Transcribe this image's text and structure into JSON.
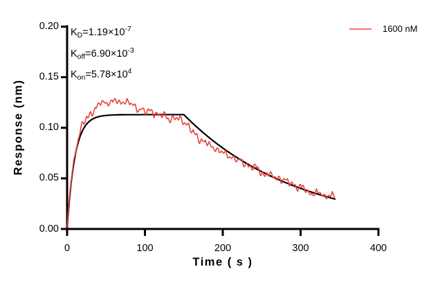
{
  "chart_data": {
    "type": "line",
    "title": "",
    "xlabel": "Time ( s )",
    "ylabel": "Response (nm)",
    "xlim": [
      0,
      400
    ],
    "ylim": [
      0,
      0.2
    ],
    "xticks": [
      "0",
      "100",
      "200",
      "300",
      "400"
    ],
    "yticks": [
      "0.00",
      "0.05",
      "0.10",
      "0.15",
      "0.20"
    ],
    "grid": false,
    "background_color": "#ffffff",
    "axis_color": "#000000",
    "legend": {
      "position": "top-right",
      "entries": [
        {
          "label": "1600 nM",
          "color": "#E8433A"
        }
      ]
    },
    "annotations": [
      {
        "base": "K",
        "sub": "D",
        "mid": "=1.19×10",
        "sup": "-7"
      },
      {
        "base": "K",
        "sub": "off",
        "mid": "=6.90×10",
        "sup": "-3"
      },
      {
        "base": "K",
        "sub": "on",
        "mid": "=5.78×10",
        "sup": "4"
      }
    ],
    "kinetics": {
      "KD_M": 1.19e-07,
      "koff_per_s": 0.0069,
      "kon_per_M_s": 57800.0,
      "concentration_nM": 1600
    },
    "series": [
      {
        "name": "1600 nM measured",
        "color": "#E8433A",
        "style": "noisy"
      },
      {
        "name": "global fit",
        "color": "#000000",
        "style": "smooth"
      }
    ],
    "model": {
      "rmax_eq": 0.113,
      "tau_assoc_s": 10.06,
      "assoc_end_s": 150,
      "koff_per_s": 0.0069,
      "t_end_s": 345,
      "overshoot": 0.0135,
      "overshoot_center_s": 58,
      "overshoot_width_s": 38,
      "undershoot": 0.008,
      "undershoot_center_s": 170,
      "undershoot_width_s": 45,
      "noise_amp": 0.003
    }
  }
}
